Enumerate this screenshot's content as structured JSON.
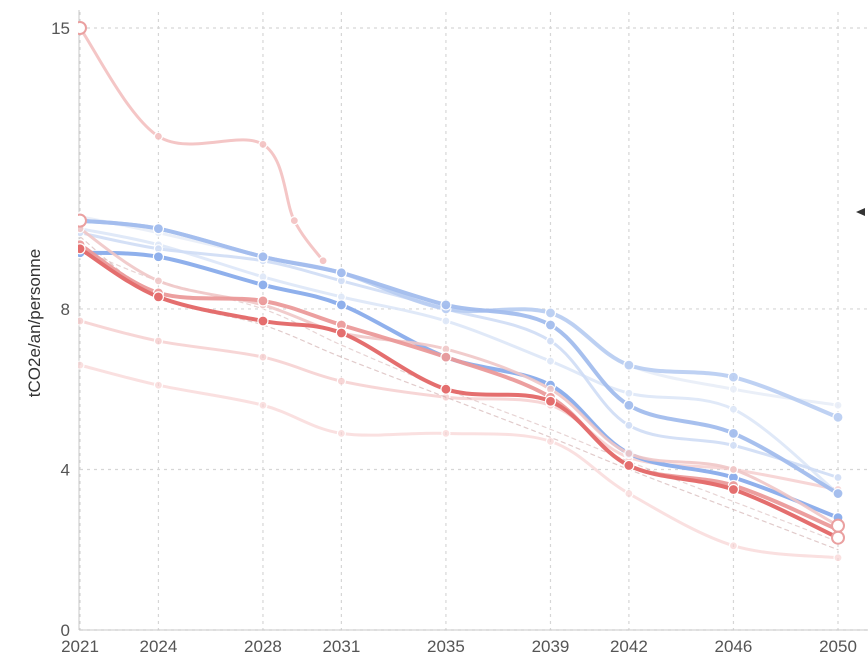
{
  "chart_data": {
    "type": "line",
    "ylabel": "tCO2e/an/personne",
    "x_ticks": [
      "2021",
      "2024",
      "2028",
      "2031",
      "2035",
      "2039",
      "2042",
      "2046",
      "2050"
    ],
    "y_ticks": [
      "0",
      "4",
      "8",
      "15"
    ],
    "xlim": [
      2021,
      2050
    ],
    "ylim": [
      0,
      15
    ],
    "grid": true,
    "series": [
      {
        "color": "#f2b8b8",
        "opacity": 0.8,
        "width": 3,
        "points": [
          [
            2021,
            15.0
          ],
          [
            2024,
            12.3
          ],
          [
            2028,
            12.1
          ],
          [
            2029.2,
            10.2
          ],
          [
            2030.3,
            9.2
          ]
        ]
      },
      {
        "color": "#f5c5c5",
        "opacity": 0.7,
        "width": 3,
        "points": [
          [
            2021,
            7.7
          ],
          [
            2024,
            7.2
          ],
          [
            2028,
            6.8
          ],
          [
            2031,
            6.2
          ],
          [
            2035,
            5.8
          ],
          [
            2039,
            5.6
          ],
          [
            2042,
            4.3
          ],
          [
            2046,
            4.0
          ],
          [
            2050,
            3.5
          ]
        ]
      },
      {
        "color": "#f8d3d3",
        "opacity": 0.7,
        "width": 3,
        "points": [
          [
            2021,
            6.6
          ],
          [
            2024,
            6.1
          ],
          [
            2028,
            5.6
          ],
          [
            2031,
            4.9
          ],
          [
            2035,
            4.9
          ],
          [
            2039,
            4.7
          ],
          [
            2042,
            3.4
          ],
          [
            2046,
            2.1
          ],
          [
            2050,
            1.8
          ]
        ]
      },
      {
        "color": "#c9a0a0",
        "opacity": 0.55,
        "width": 1.2,
        "dash": "4 4",
        "points": [
          [
            2021,
            9.8
          ],
          [
            2024,
            8.3
          ],
          [
            2028,
            7.6
          ],
          [
            2031,
            6.8
          ],
          [
            2035,
            5.8
          ],
          [
            2039,
            4.8
          ],
          [
            2042,
            4.0
          ],
          [
            2046,
            3.0
          ],
          [
            2050,
            2.0
          ]
        ]
      },
      {
        "color": "#c9a0a0",
        "opacity": 0.45,
        "width": 1.2,
        "dash": "4 4",
        "points": [
          [
            2021,
            9.5
          ],
          [
            2024,
            8.7
          ],
          [
            2028,
            8.0
          ],
          [
            2031,
            7.1
          ],
          [
            2035,
            6.0
          ],
          [
            2039,
            5.0
          ],
          [
            2042,
            4.2
          ],
          [
            2046,
            3.2
          ],
          [
            2050,
            2.2
          ]
        ]
      },
      {
        "color": "#e8eef8",
        "opacity": 0.9,
        "width": 3,
        "points": [
          [
            2021,
            10.3
          ],
          [
            2024,
            9.9
          ],
          [
            2028,
            9.3
          ],
          [
            2031,
            8.9
          ],
          [
            2035,
            8.0
          ],
          [
            2039,
            7.9
          ],
          [
            2042,
            6.6
          ],
          [
            2046,
            6.0
          ],
          [
            2050,
            5.6
          ]
        ]
      },
      {
        "color": "#dde7f8",
        "opacity": 0.9,
        "width": 3,
        "points": [
          [
            2021,
            10.0
          ],
          [
            2024,
            9.6
          ],
          [
            2028,
            8.8
          ],
          [
            2031,
            8.3
          ],
          [
            2035,
            7.7
          ],
          [
            2039,
            6.7
          ],
          [
            2042,
            5.9
          ],
          [
            2046,
            5.5
          ],
          [
            2050,
            3.4
          ]
        ]
      },
      {
        "color": "#d0ddf6",
        "opacity": 0.9,
        "width": 3,
        "points": [
          [
            2021,
            9.9
          ],
          [
            2024,
            9.5
          ],
          [
            2028,
            9.2
          ],
          [
            2031,
            8.7
          ],
          [
            2035,
            8.0
          ],
          [
            2039,
            7.2
          ],
          [
            2042,
            5.1
          ],
          [
            2046,
            4.6
          ],
          [
            2050,
            3.8
          ]
        ]
      },
      {
        "color": "#b8cdf2",
        "opacity": 0.9,
        "width": 4,
        "points": [
          [
            2021,
            10.2
          ],
          [
            2024,
            10.0
          ],
          [
            2028,
            9.3
          ],
          [
            2031,
            8.9
          ],
          [
            2035,
            8.0
          ],
          [
            2039,
            7.9
          ],
          [
            2042,
            6.6
          ],
          [
            2046,
            6.3
          ],
          [
            2050,
            5.3
          ]
        ]
      },
      {
        "color": "#a3bdee",
        "opacity": 0.95,
        "width": 4,
        "points": [
          [
            2021,
            10.2
          ],
          [
            2024,
            10.0
          ],
          [
            2028,
            9.3
          ],
          [
            2031,
            8.9
          ],
          [
            2035,
            8.1
          ],
          [
            2039,
            7.6
          ],
          [
            2042,
            5.6
          ],
          [
            2046,
            4.9
          ],
          [
            2050,
            3.4
          ]
        ]
      },
      {
        "color": "#8fb0ec",
        "opacity": 1,
        "width": 4,
        "points": [
          [
            2021,
            9.4
          ],
          [
            2024,
            9.3
          ],
          [
            2028,
            8.6
          ],
          [
            2031,
            8.1
          ],
          [
            2035,
            6.8
          ],
          [
            2039,
            6.1
          ],
          [
            2042,
            4.4
          ],
          [
            2046,
            3.8
          ],
          [
            2050,
            2.8
          ]
        ]
      },
      {
        "color": "#f0c7c7",
        "opacity": 0.9,
        "width": 3,
        "points": [
          [
            2021,
            10.0
          ],
          [
            2024,
            8.7
          ],
          [
            2028,
            8.1
          ],
          [
            2031,
            7.4
          ],
          [
            2035,
            7.0
          ],
          [
            2039,
            6.0
          ],
          [
            2042,
            4.4
          ],
          [
            2046,
            4.0
          ],
          [
            2050,
            2.6
          ]
        ]
      },
      {
        "color": "#eb9a9a",
        "opacity": 0.95,
        "width": 4,
        "points": [
          [
            2021,
            9.6
          ],
          [
            2024,
            8.4
          ],
          [
            2028,
            8.2
          ],
          [
            2031,
            7.6
          ],
          [
            2035,
            6.8
          ],
          [
            2039,
            5.8
          ],
          [
            2042,
            4.1
          ],
          [
            2046,
            3.6
          ],
          [
            2050,
            2.5
          ]
        ]
      },
      {
        "color": "#e46e6e",
        "opacity": 1,
        "width": 4,
        "points": [
          [
            2021,
            9.5
          ],
          [
            2024,
            8.3
          ],
          [
            2028,
            7.7
          ],
          [
            2031,
            7.4
          ],
          [
            2035,
            6.0
          ],
          [
            2039,
            5.7
          ],
          [
            2042,
            4.1
          ],
          [
            2046,
            3.5
          ],
          [
            2050,
            2.3
          ]
        ]
      }
    ]
  }
}
